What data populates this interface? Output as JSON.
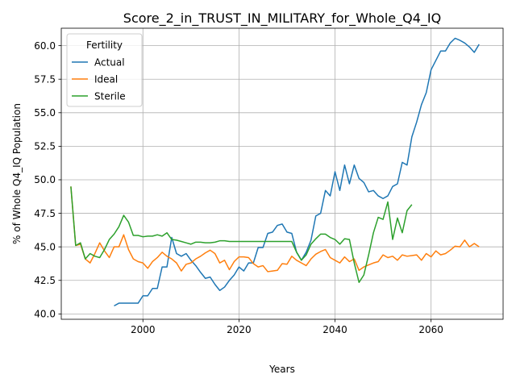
{
  "chart_data": {
    "type": "line",
    "title": "Score_2_in_TRUST_IN_MILITARY_for_Whole_Q4_IQ",
    "xlabel": "Years",
    "ylabel": "% of Whole Q4_IQ Population",
    "xlim": [
      1983,
      2075
    ],
    "ylim": [
      39.6,
      61.3
    ],
    "xticks": [
      2000,
      2020,
      2040,
      2060
    ],
    "xtick_labels": [
      "2000",
      "2020",
      "2040",
      "2060"
    ],
    "yticks": [
      40.0,
      42.5,
      45.0,
      47.5,
      50.0,
      52.5,
      55.0,
      57.5,
      60.0
    ],
    "ytick_labels": [
      "40.0",
      "42.5",
      "45.0",
      "47.5",
      "50.0",
      "52.5",
      "55.0",
      "57.5",
      "60.0"
    ],
    "grid": true,
    "legend": {
      "title": "Fertility",
      "placement": "upper-left"
    },
    "series": [
      {
        "name": "Actual",
        "color": "#1f77b4",
        "x": [
          1994,
          1995,
          1996,
          1997,
          1998,
          1999,
          2000,
          2001,
          2002,
          2003,
          2004,
          2005,
          2006,
          2007,
          2008,
          2009,
          2010,
          2011,
          2012,
          2013,
          2014,
          2015,
          2016,
          2017,
          2018,
          2019,
          2020,
          2021,
          2022,
          2023,
          2024,
          2025,
          2026,
          2027,
          2028,
          2029,
          2030,
          2031,
          2032,
          2033,
          2034,
          2035,
          2036,
          2037,
          2038,
          2039,
          2040,
          2041,
          2042,
          2043,
          2044,
          2045,
          2046,
          2047,
          2048,
          2049,
          2050,
          2051,
          2052,
          2053,
          2054,
          2055,
          2056,
          2057,
          2058,
          2059,
          2060,
          2061,
          2062,
          2063,
          2064,
          2065,
          2066,
          2067,
          2068,
          2069,
          2070
        ],
        "values": [
          40.6,
          40.8,
          40.8,
          40.8,
          40.8,
          40.8,
          41.35,
          41.35,
          41.9,
          41.9,
          43.5,
          43.5,
          45.7,
          44.5,
          44.3,
          44.5,
          44.0,
          43.6,
          43.1,
          42.65,
          42.75,
          42.2,
          41.75,
          42.0,
          42.5,
          42.9,
          43.5,
          43.2,
          43.8,
          43.8,
          44.95,
          44.95,
          46.0,
          46.1,
          46.6,
          46.7,
          46.1,
          46.0,
          44.6,
          44.0,
          44.6,
          45.5,
          47.3,
          47.5,
          49.2,
          48.8,
          50.6,
          49.2,
          51.1,
          49.7,
          51.1,
          50.1,
          49.8,
          49.1,
          49.2,
          48.8,
          48.6,
          48.8,
          49.5,
          49.7,
          51.3,
          51.1,
          53.2,
          54.3,
          55.6,
          56.5,
          58.2,
          58.9,
          59.6,
          59.6,
          60.2,
          60.55,
          60.4,
          60.2,
          59.9,
          59.5,
          60.1
        ]
      },
      {
        "name": "Ideal",
        "color": "#ff7f0e",
        "x": [
          1985,
          1986,
          1987,
          1988,
          1989,
          1990,
          1991,
          1992,
          1993,
          1994,
          1995,
          1996,
          1997,
          1998,
          1999,
          2000,
          2001,
          2002,
          2003,
          2004,
          2005,
          2006,
          2007,
          2008,
          2009,
          2010,
          2011,
          2012,
          2013,
          2014,
          2015,
          2016,
          2017,
          2018,
          2019,
          2020,
          2021,
          2022,
          2023,
          2024,
          2025,
          2026,
          2027,
          2028,
          2029,
          2030,
          2031,
          2032,
          2033,
          2034,
          2035,
          2036,
          2037,
          2038,
          2039,
          2040,
          2041,
          2042,
          2043,
          2044,
          2045,
          2046,
          2047,
          2048,
          2049,
          2050,
          2051,
          2052,
          2053,
          2054,
          2055,
          2056,
          2057,
          2058,
          2059,
          2060,
          2061,
          2062,
          2063,
          2064,
          2065,
          2066,
          2067,
          2068,
          2069,
          2070
        ],
        "values": [
          49.5,
          45.1,
          45.2,
          44.1,
          43.8,
          44.5,
          45.3,
          44.7,
          44.2,
          45.0,
          45.0,
          45.9,
          44.8,
          44.1,
          43.9,
          43.8,
          43.4,
          43.9,
          44.2,
          44.6,
          44.3,
          44.1,
          43.8,
          43.2,
          43.7,
          43.8,
          44.1,
          44.3,
          44.55,
          44.75,
          44.5,
          43.8,
          44.0,
          43.3,
          43.9,
          44.25,
          44.25,
          44.2,
          43.75,
          43.5,
          43.6,
          43.15,
          43.2,
          43.25,
          43.75,
          43.7,
          44.3,
          44.0,
          43.8,
          43.6,
          44.1,
          44.45,
          44.65,
          44.8,
          44.2,
          44.0,
          43.8,
          44.25,
          43.9,
          44.1,
          43.25,
          43.5,
          43.65,
          43.8,
          43.9,
          44.4,
          44.2,
          44.3,
          44.0,
          44.4,
          44.3,
          44.35,
          44.4,
          44.0,
          44.5,
          44.25,
          44.7,
          44.4,
          44.5,
          44.75,
          45.05,
          45.0,
          45.5,
          45.0,
          45.25,
          45.0
        ]
      },
      {
        "name": "Sterile",
        "color": "#2ca02c",
        "x": [
          1985,
          1986,
          1987,
          1988,
          1989,
          1990,
          1991,
          1992,
          1993,
          1994,
          1995,
          1996,
          1997,
          1998,
          1999,
          2000,
          2001,
          2002,
          2003,
          2004,
          2005,
          2006,
          2007,
          2008,
          2009,
          2010,
          2011,
          2012,
          2013,
          2014,
          2015,
          2016,
          2017,
          2018,
          2019,
          2020,
          2021,
          2022,
          2023,
          2024,
          2025,
          2026,
          2027,
          2028,
          2029,
          2030,
          2031,
          2032,
          2033,
          2034,
          2035,
          2036,
          2037,
          2038,
          2039,
          2040,
          2041,
          2042,
          2043,
          2044,
          2045,
          2046,
          2047,
          2048,
          2049,
          2050,
          2051,
          2052,
          2053,
          2054,
          2055,
          2056
        ],
        "values": [
          49.5,
          45.1,
          45.3,
          44.1,
          44.5,
          44.3,
          44.2,
          44.8,
          45.55,
          45.95,
          46.5,
          47.35,
          46.85,
          45.85,
          45.85,
          45.75,
          45.8,
          45.8,
          45.9,
          45.8,
          46.05,
          45.55,
          45.5,
          45.4,
          45.3,
          45.2,
          45.35,
          45.35,
          45.3,
          45.3,
          45.35,
          45.45,
          45.45,
          45.4,
          45.4,
          45.4,
          45.4,
          45.4,
          45.4,
          45.4,
          45.4,
          45.4,
          45.4,
          45.4,
          45.4,
          45.4,
          45.4,
          44.6,
          44.0,
          44.4,
          45.2,
          45.6,
          45.95,
          45.95,
          45.7,
          45.55,
          45.2,
          45.6,
          45.55,
          43.8,
          42.35,
          42.9,
          44.4,
          46.05,
          47.2,
          47.05,
          48.35,
          45.55,
          47.15,
          46.05,
          47.7,
          48.15
        ]
      }
    ]
  }
}
